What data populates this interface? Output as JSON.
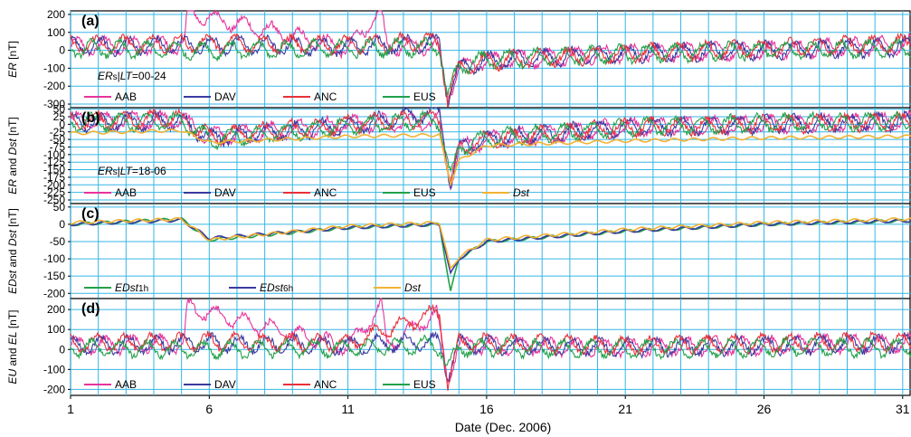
{
  "xlabel": "Date (Dec. 2006)",
  "x_ticks": [
    "1",
    "6",
    "11",
    "16",
    "21",
    "26",
    "31"
  ],
  "colors": {
    "AAB": "#e8339a",
    "DAV": "#3b3aa0",
    "ANC": "#e8313a",
    "EUS": "#23a04a",
    "Dst": "#f2b233",
    "grid": "#35b6e6"
  },
  "chart_data": [
    {
      "type": "line",
      "panel": "(a)",
      "ylabel_parts": [
        "ER",
        " [nT]"
      ],
      "annotation_parts": [
        "ER",
        "s",
        "|",
        "LT",
        "=00-24"
      ],
      "ylim": [
        -320,
        220
      ],
      "yticks": [
        200,
        100,
        0,
        -100,
        -200,
        -300
      ],
      "xlim": [
        1,
        31
      ],
      "grid": true,
      "legend_position": "bottom-left",
      "series": [
        {
          "name": "AAB",
          "x": [
            1,
            5.1,
            5.2,
            11,
            12.2,
            12.4,
            14.2,
            14.6,
            15,
            16,
            21,
            26,
            31
          ],
          "y": [
            20,
            30,
            210,
            10,
            220,
            20,
            30,
            -250,
            -100,
            -60,
            -20,
            0,
            30
          ]
        },
        {
          "name": "DAV",
          "x": [
            1,
            6,
            11,
            14.3,
            14.6,
            15,
            16,
            21,
            26,
            31
          ],
          "y": [
            20,
            30,
            20,
            40,
            -270,
            -100,
            -60,
            -20,
            0,
            20
          ]
        },
        {
          "name": "ANC",
          "x": [
            1,
            6,
            11,
            14.3,
            14.6,
            15,
            16,
            21,
            26,
            31
          ],
          "y": [
            30,
            40,
            30,
            50,
            -280,
            -100,
            -60,
            -20,
            10,
            40
          ]
        },
        {
          "name": "EUS",
          "x": [
            1,
            6,
            11,
            14.3,
            14.6,
            15,
            16,
            21,
            26,
            31
          ],
          "y": [
            10,
            0,
            10,
            20,
            -260,
            -90,
            -50,
            -20,
            0,
            10
          ]
        }
      ]
    },
    {
      "type": "line",
      "panel": "(b)",
      "ylabel_parts": [
        "ER",
        " and ",
        "Dst",
        " [nT]"
      ],
      "annotation_parts": [
        "ER",
        "s",
        "|",
        "LT",
        "=18-06"
      ],
      "ylim": [
        -262,
        55
      ],
      "yticks": [
        50,
        25,
        0,
        -25,
        -50,
        -75,
        -100,
        -125,
        -150,
        -175,
        -200,
        -225,
        -250
      ],
      "xlim": [
        1,
        31
      ],
      "grid": true,
      "legend_position": "bottom-left",
      "series": [
        {
          "name": "AAB",
          "x": [
            1,
            5,
            6,
            11,
            14.3,
            14.7,
            15,
            16,
            21,
            26,
            31
          ],
          "y": [
            10,
            15,
            -40,
            0,
            10,
            -190,
            -80,
            -50,
            -10,
            0,
            10
          ]
        },
        {
          "name": "DAV",
          "x": [
            1,
            5,
            6,
            11,
            14.3,
            14.7,
            15,
            16,
            21,
            26,
            31
          ],
          "y": [
            5,
            10,
            -45,
            -5,
            40,
            -195,
            -80,
            -50,
            -10,
            0,
            10
          ]
        },
        {
          "name": "ANC",
          "x": [
            1,
            5,
            6,
            11,
            14.3,
            14.7,
            15,
            16,
            21,
            26,
            31
          ],
          "y": [
            10,
            20,
            -40,
            0,
            20,
            -200,
            -85,
            -50,
            -10,
            0,
            10
          ]
        },
        {
          "name": "EUS",
          "x": [
            1,
            5,
            6,
            11,
            14.3,
            14.7,
            15,
            16,
            21,
            26,
            31
          ],
          "y": [
            5,
            10,
            -50,
            -5,
            15,
            -185,
            -75,
            -45,
            -10,
            5,
            10
          ]
        },
        {
          "name": "Dst",
          "x": [
            1,
            5,
            6,
            11,
            14.3,
            14.7,
            15,
            16,
            21,
            26,
            31
          ],
          "y": [
            -30,
            -20,
            -60,
            -40,
            -35,
            -195,
            -120,
            -70,
            -55,
            -45,
            -40
          ]
        }
      ]
    },
    {
      "type": "line",
      "panel": "(c)",
      "ylabel_parts": [
        "EDst",
        " and ",
        "Dst",
        " [nT]"
      ],
      "ylim": [
        -215,
        60
      ],
      "yticks": [
        50,
        0,
        -50,
        -100,
        -150,
        -200
      ],
      "xlim": [
        1,
        31
      ],
      "grid": true,
      "legend_position": "bottom-left",
      "legend_labels": [
        [
          "EDst",
          "1h"
        ],
        [
          "EDst",
          "6h"
        ],
        [
          "Dst",
          ""
        ]
      ],
      "series": [
        {
          "name": "EDst1h",
          "x": [
            1,
            5,
            6,
            11,
            14.3,
            14.7,
            15,
            16,
            21,
            26,
            31
          ],
          "y": [
            0,
            15,
            -45,
            -10,
            0,
            -195,
            -100,
            -50,
            -20,
            0,
            10
          ]
        },
        {
          "name": "EDst6h",
          "x": [
            1,
            5,
            6,
            11,
            14.3,
            14.7,
            15,
            16,
            21,
            26,
            31
          ],
          "y": [
            0,
            12,
            -40,
            -10,
            0,
            -145,
            -100,
            -50,
            -20,
            0,
            10
          ]
        },
        {
          "name": "Dst",
          "x": [
            1,
            5,
            6,
            11,
            14.3,
            14.7,
            15,
            16,
            21,
            26,
            31
          ],
          "y": [
            5,
            15,
            -45,
            -5,
            5,
            -130,
            -95,
            -45,
            -15,
            5,
            15
          ]
        }
      ]
    },
    {
      "type": "line",
      "panel": "(d)",
      "ylabel_parts": [
        "EU",
        " and ",
        "EL",
        " [nT]"
      ],
      "ylim": [
        -230,
        255
      ],
      "yticks": [
        200,
        100,
        0,
        -100,
        -200
      ],
      "xlim": [
        1,
        31
      ],
      "grid": true,
      "legend_position": "bottom-left",
      "series": [
        {
          "name": "AAB",
          "x": [
            1,
            5.1,
            5.2,
            11,
            12.2,
            12.4,
            14.2,
            14.6,
            15,
            16,
            21,
            26,
            31
          ],
          "y": [
            20,
            30,
            210,
            10,
            220,
            20,
            180,
            -150,
            30,
            20,
            10,
            20,
            30
          ]
        },
        {
          "name": "DAV",
          "x": [
            1,
            6,
            11,
            14.3,
            14.6,
            15,
            16,
            21,
            26,
            31
          ],
          "y": [
            20,
            30,
            20,
            40,
            -120,
            30,
            20,
            10,
            20,
            30
          ]
        },
        {
          "name": "ANC",
          "x": [
            1,
            6,
            11,
            14.3,
            14.6,
            15,
            16,
            21,
            26,
            31
          ],
          "y": [
            30,
            40,
            30,
            190,
            -190,
            40,
            30,
            20,
            30,
            40
          ]
        },
        {
          "name": "EUS",
          "x": [
            1,
            6,
            11,
            14.3,
            14.6,
            15,
            16,
            21,
            26,
            31
          ],
          "y": [
            10,
            0,
            10,
            20,
            -100,
            10,
            10,
            0,
            10,
            10
          ]
        }
      ]
    }
  ]
}
